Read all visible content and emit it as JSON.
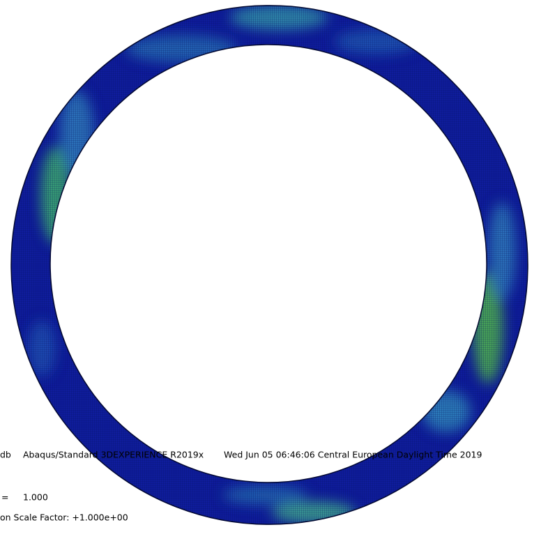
{
  "viewport": {
    "info_line": {
      "odb": "db",
      "solver": "Abaqus/Standard 3DEXPERIENCE R2019x",
      "date": "Wed Jun 05 06:46:06 Central European Daylight Time 2019"
    },
    "step_time": {
      "label": "=",
      "value": "1.000"
    },
    "deformation": "on Scale Factor: +1.000e+00"
  }
}
